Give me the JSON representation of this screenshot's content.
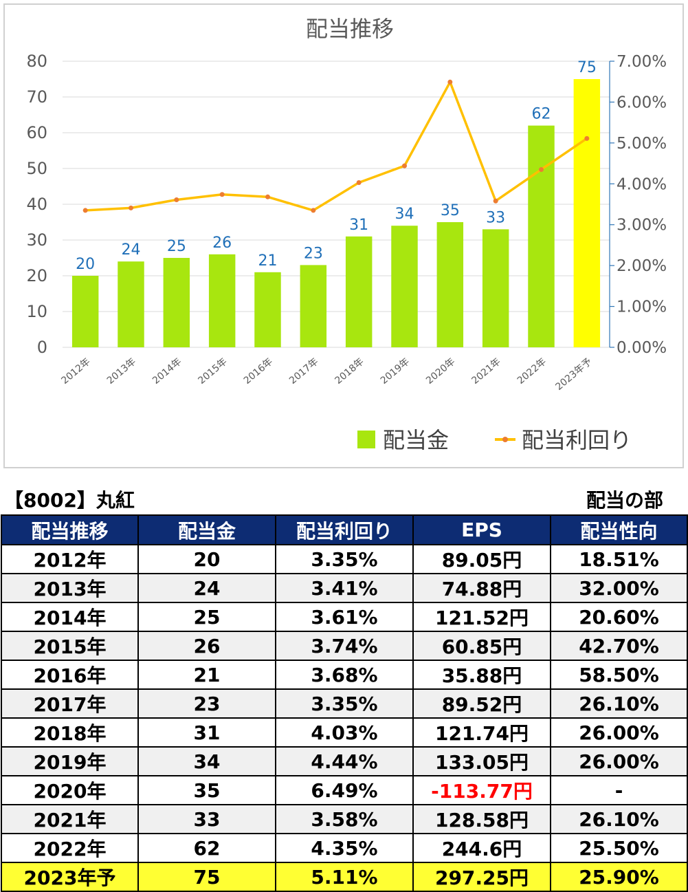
{
  "chart_data": {
    "type": "bar",
    "title": "配当推移",
    "categories": [
      "2012年",
      "2013年",
      "2014年",
      "2015年",
      "2016年",
      "2017年",
      "2018年",
      "2019年",
      "2020年",
      "2021年",
      "2022年",
      "2023年予"
    ],
    "series": [
      {
        "name": "配当金",
        "type": "bar",
        "axis": "left",
        "values": [
          20,
          24,
          25,
          26,
          21,
          23,
          31,
          34,
          35,
          33,
          62,
          75
        ],
        "color": "#a8e60f",
        "highlight_color": "#ffff00",
        "highlight_index": 11
      },
      {
        "name": "配当利回り",
        "type": "line",
        "axis": "right",
        "values": [
          3.35,
          3.41,
          3.61,
          3.74,
          3.68,
          3.35,
          4.03,
          4.44,
          6.49,
          3.58,
          4.35,
          5.11
        ],
        "color": "#ffc000",
        "marker_color": "#ed7d31"
      }
    ],
    "ylim": [
      0,
      80
    ],
    "yticks": [
      0,
      10,
      20,
      30,
      40,
      50,
      60,
      70,
      80
    ],
    "y2lim": [
      0,
      7
    ],
    "y2ticks": [
      "0.00%",
      "1.00%",
      "2.00%",
      "3.00%",
      "4.00%",
      "5.00%",
      "6.00%",
      "7.00%"
    ],
    "grid": true,
    "legend_position": "bottom-right"
  },
  "table": {
    "title": "【8002】丸紅",
    "section": "配当の部",
    "headers": [
      "配当推移",
      "配当金",
      "配当利回り",
      "EPS",
      "配当性向"
    ],
    "rows": [
      [
        "2012年",
        "20",
        "3.35%",
        "89.05円",
        "18.51%"
      ],
      [
        "2013年",
        "24",
        "3.41%",
        "74.88円",
        "32.00%"
      ],
      [
        "2014年",
        "25",
        "3.61%",
        "121.52円",
        "20.60%"
      ],
      [
        "2015年",
        "26",
        "3.74%",
        "60.85円",
        "42.70%"
      ],
      [
        "2016年",
        "21",
        "3.68%",
        "35.88円",
        "58.50%"
      ],
      [
        "2017年",
        "23",
        "3.35%",
        "89.52円",
        "26.10%"
      ],
      [
        "2018年",
        "31",
        "4.03%",
        "121.74円",
        "26.00%"
      ],
      [
        "2019年",
        "34",
        "4.44%",
        "133.05円",
        "26.00%"
      ],
      [
        "2020年",
        "35",
        "6.49%",
        "-113.77円",
        "-"
      ],
      [
        "2021年",
        "33",
        "3.58%",
        "128.58円",
        "26.10%"
      ],
      [
        "2022年",
        "62",
        "4.35%",
        "244.6円",
        "25.50%"
      ],
      [
        "2023年予",
        "75",
        "5.11%",
        "297.25円",
        "25.90%"
      ]
    ],
    "negative_color": "#ff0000",
    "highlight_color": "#ffff33",
    "header_color": "#0d2c73"
  }
}
